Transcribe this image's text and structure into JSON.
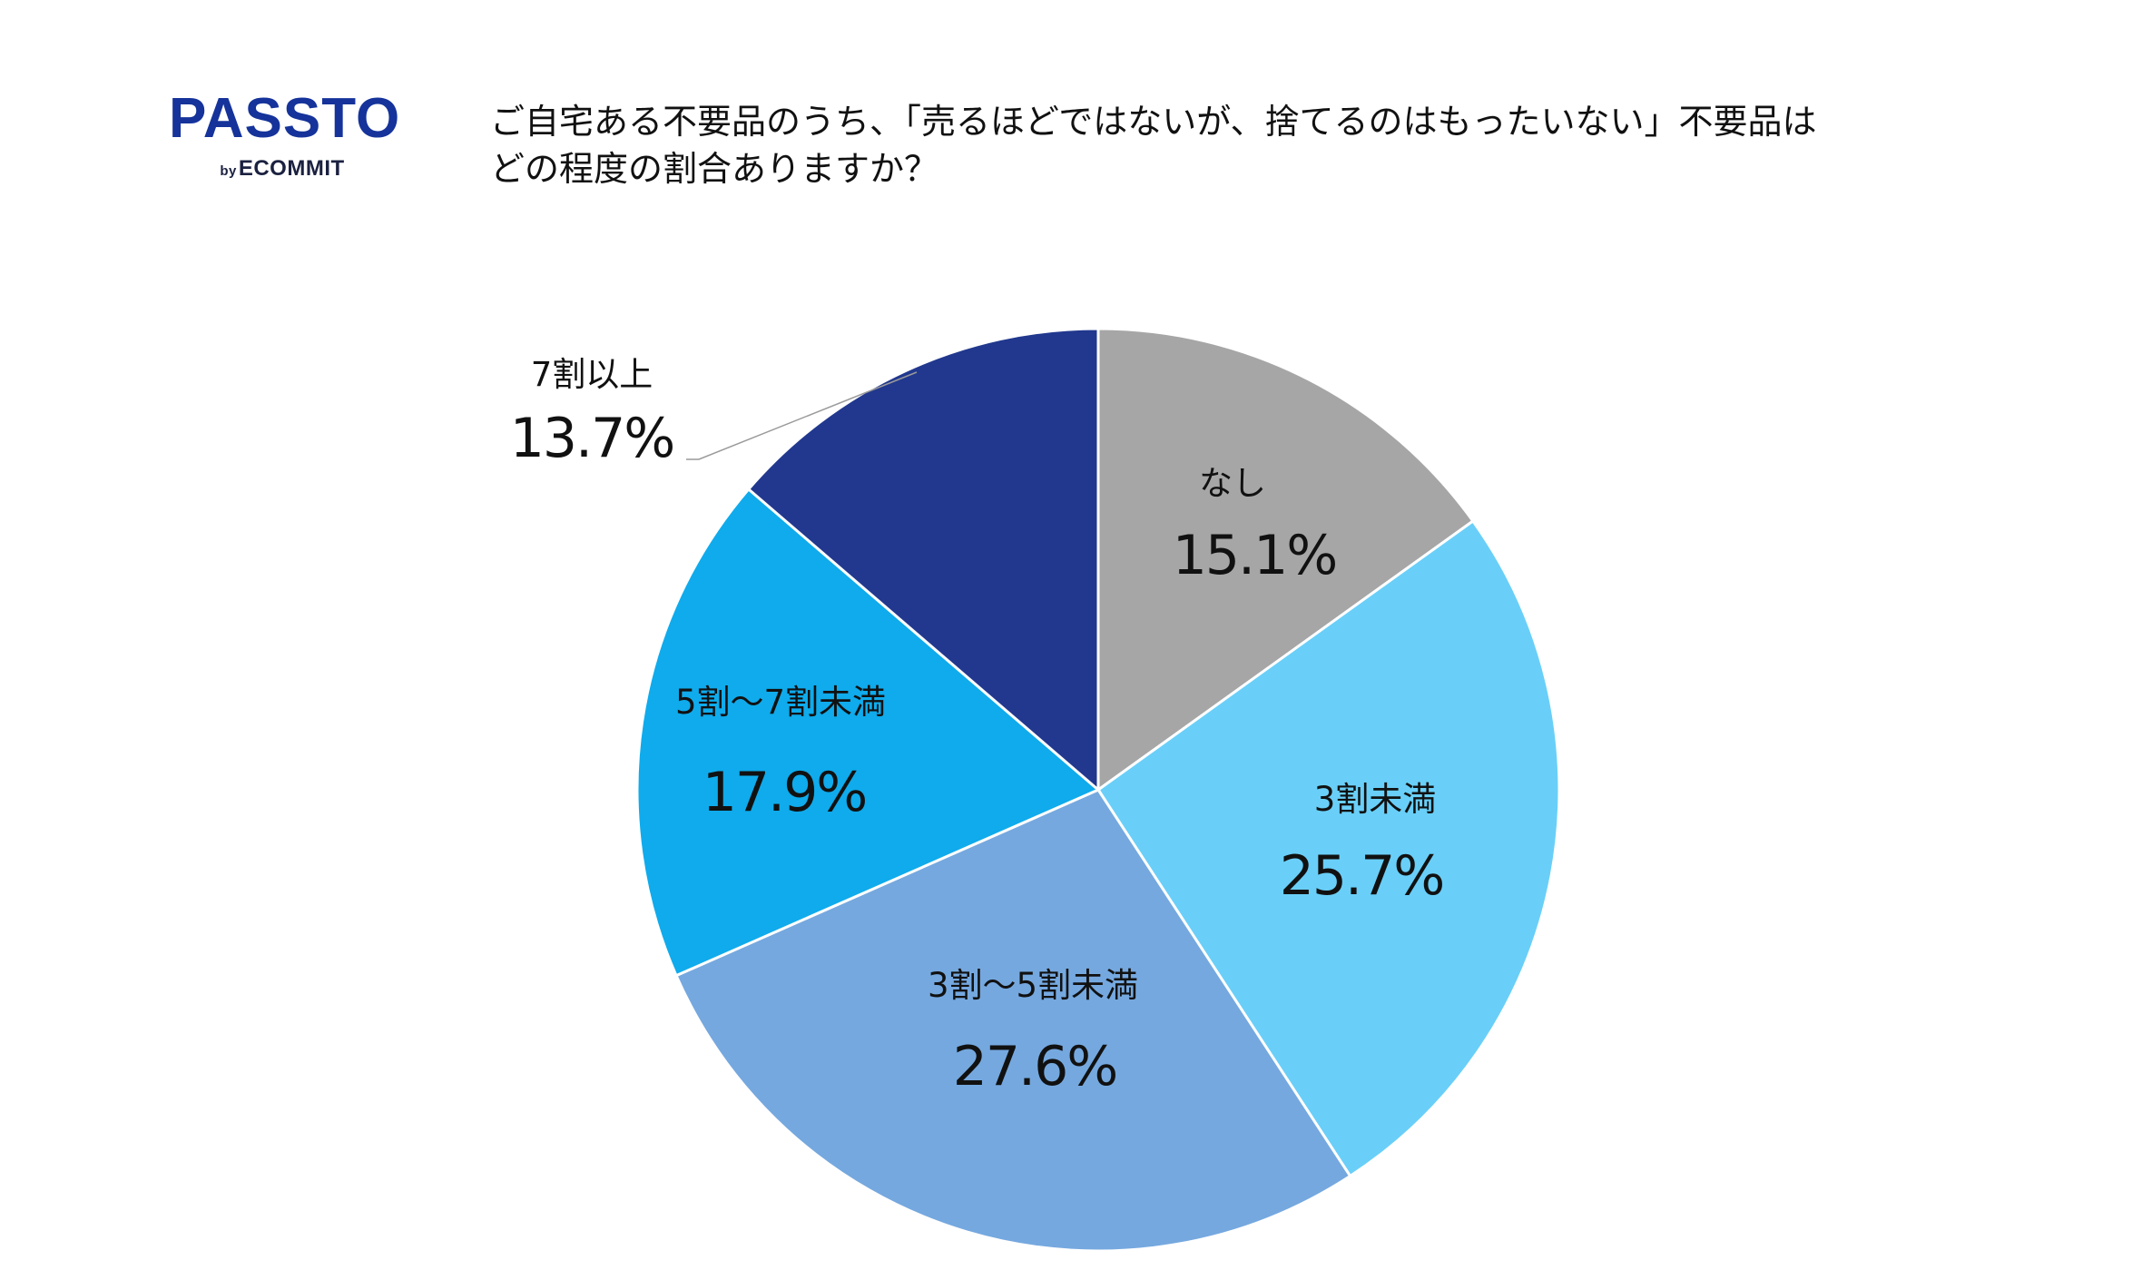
{
  "logo": {
    "main": "PASSTO",
    "by": "by",
    "sub": "ECOMMIT",
    "color": "#15339a"
  },
  "title": {
    "line1": "ご自宅ある不要品のうち、「売るほどではないが、捨てるのはもったいない」不要品は",
    "line2": "どの程度の割合ありますか？"
  },
  "chart_data": {
    "type": "pie",
    "title": "ご自宅ある不要品のうち、「売るほどではないが、捨てるのはもったいない」不要品はどの程度の割合ありますか？",
    "start_angle": "12 o'clock",
    "direction": "clockwise",
    "slices": [
      {
        "label": "なし",
        "value": 15.1,
        "value_label": "15.1%",
        "color": "#a6a6a6"
      },
      {
        "label": "3割未満",
        "value": 25.7,
        "value_label": "25.7%",
        "color": "#69cff8"
      },
      {
        "label": "3割～5割未満",
        "value": 27.6,
        "value_label": "27.6%",
        "color": "#75a8df"
      },
      {
        "label": "5割～7割未満",
        "value": 17.9,
        "value_label": "17.9%",
        "color": "#0fabec"
      },
      {
        "label": "7割以上",
        "value": 13.7,
        "value_label": "13.7%",
        "color": "#21388e"
      }
    ]
  }
}
